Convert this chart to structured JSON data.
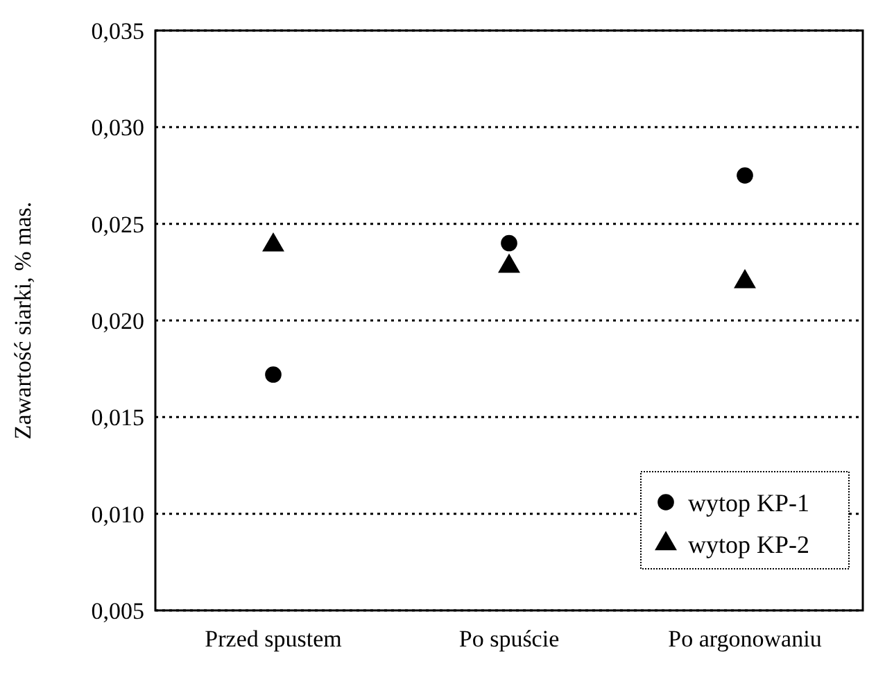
{
  "chart_data": {
    "type": "scatter",
    "ylabel": "Zawartość siarki, % mas.",
    "categories": [
      "Przed spustem",
      "Po spuście",
      "Po argonowaniu"
    ],
    "series": [
      {
        "name": "wytop KP-1",
        "color": "#000000",
        "marker": "circle",
        "values": [
          0.0172,
          0.024,
          0.0275
        ]
      },
      {
        "name": "wytop KP-2",
        "color": "#000000",
        "marker": "triangle",
        "values": [
          0.0239,
          0.0228,
          0.022
        ]
      }
    ],
    "ylim": [
      0.005,
      0.035
    ],
    "yticks": [
      {
        "value": 0.005,
        "label": "0,005"
      },
      {
        "value": 0.01,
        "label": "0,010"
      },
      {
        "value": 0.015,
        "label": "0,015"
      },
      {
        "value": 0.02,
        "label": "0,020"
      },
      {
        "value": 0.025,
        "label": "0,025"
      },
      {
        "value": 0.03,
        "label": "0,030"
      },
      {
        "value": 0.035,
        "label": "0,035"
      }
    ],
    "grid": "y",
    "legend": "bottom right"
  }
}
